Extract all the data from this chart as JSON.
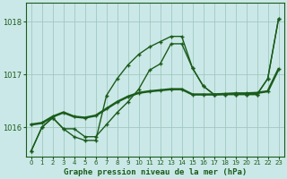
{
  "title": "Graphe pression niveau de la mer (hPa)",
  "background_color": "#cbe8e8",
  "plot_bg_color": "#cbe8e8",
  "grid_color": "#a0c8c0",
  "line_color": "#1a5c1a",
  "yticks": [
    1016,
    1017,
    1018
  ],
  "ylim_low": 1015.45,
  "ylim_high": 1018.35,
  "series1_x": [
    0,
    1,
    2,
    3,
    4,
    5,
    6,
    7,
    8,
    9,
    10,
    11,
    12,
    13,
    14,
    15,
    16,
    17,
    18,
    19,
    20,
    21,
    22,
    23
  ],
  "series1_y": [
    1015.55,
    1016.0,
    1016.18,
    1015.97,
    1015.97,
    1015.82,
    1015.82,
    1016.05,
    1016.28,
    1016.48,
    1016.72,
    1017.08,
    1017.2,
    1017.58,
    1017.58,
    1017.12,
    1016.78,
    1016.62,
    1016.62,
    1016.62,
    1016.62,
    1016.62,
    1016.92,
    1018.05
  ],
  "series2_x": [
    0,
    1,
    2,
    3,
    4,
    5,
    6,
    7,
    8,
    9,
    10,
    11,
    12,
    13,
    14,
    15,
    16,
    17,
    18,
    19,
    20,
    21,
    22,
    23
  ],
  "series2_y": [
    1015.55,
    1016.0,
    1016.18,
    1015.97,
    1015.82,
    1015.75,
    1015.75,
    1016.6,
    1016.92,
    1017.18,
    1017.38,
    1017.52,
    1017.62,
    1017.72,
    1017.72,
    1017.12,
    1016.78,
    1016.62,
    1016.62,
    1016.62,
    1016.62,
    1016.62,
    1016.92,
    1018.05
  ],
  "series3_x": [
    0,
    1,
    2,
    3,
    4,
    5,
    6,
    7,
    8,
    9,
    10,
    11,
    12,
    13,
    14,
    15,
    16,
    17,
    18,
    19,
    20,
    21,
    22,
    23
  ],
  "series3_y": [
    1016.05,
    1016.08,
    1016.2,
    1016.28,
    1016.2,
    1016.18,
    1016.22,
    1016.35,
    1016.48,
    1016.58,
    1016.65,
    1016.68,
    1016.7,
    1016.72,
    1016.72,
    1016.62,
    1016.62,
    1016.62,
    1016.63,
    1016.64,
    1016.64,
    1016.65,
    1016.68,
    1017.1
  ]
}
